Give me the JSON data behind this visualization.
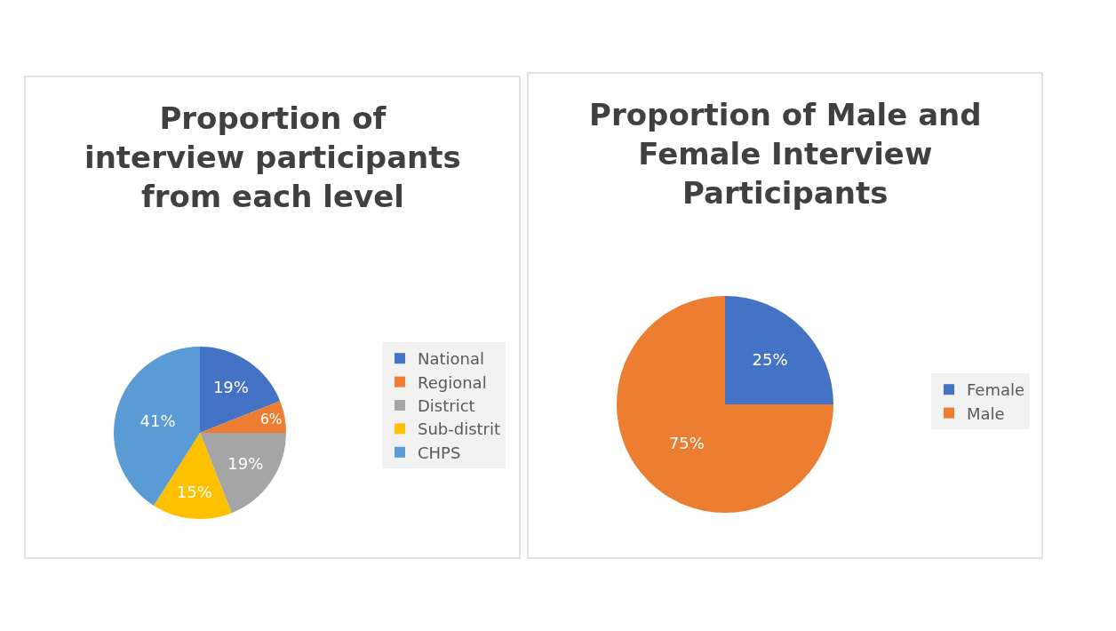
{
  "chart_data": [
    {
      "type": "pie",
      "title": "Proportion of interview participants from each level",
      "categories": [
        "National",
        "Regional",
        "District",
        "Sub-distrit",
        "CHPS"
      ],
      "values": [
        19,
        6,
        19,
        15,
        41
      ],
      "value_labels": [
        "19%",
        "6%",
        "19%",
        "15%",
        "41%"
      ],
      "colors": [
        "#4472c4",
        "#ed7d31",
        "#a5a5a5",
        "#ffc000",
        "#5b9bd5"
      ],
      "legend": "right"
    },
    {
      "type": "pie",
      "title": "Proportion of Male and Female Interview Participants",
      "categories": [
        "Female",
        "Male"
      ],
      "values": [
        25,
        75
      ],
      "value_labels": [
        "25%",
        "75%"
      ],
      "colors": [
        "#4472c4",
        "#ed7d31"
      ],
      "legend": "right"
    }
  ]
}
